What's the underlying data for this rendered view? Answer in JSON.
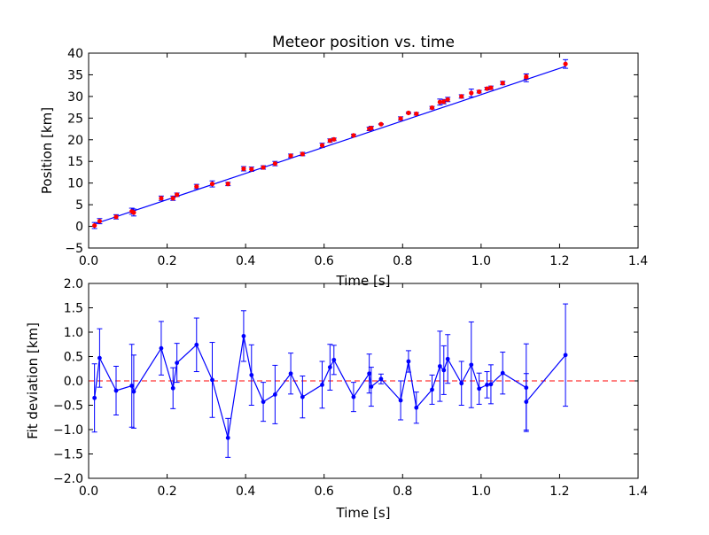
{
  "chart_data": [
    {
      "type": "scatter",
      "title": "Meteor position vs. time",
      "xlabel": "Time [s]",
      "ylabel": "Position [km]",
      "xlim": [
        0,
        1.4
      ],
      "ylim": [
        -5,
        40
      ],
      "xticks": [
        "0.0",
        "0.2",
        "0.4",
        "0.6",
        "0.8",
        "1.0",
        "1.2",
        "1.4"
      ],
      "yticks": [
        "−5",
        "0",
        "5",
        "10",
        "15",
        "20",
        "25",
        "30",
        "35",
        "40"
      ],
      "grid": false,
      "colors": {
        "points": "#ff0000",
        "errorbars": "#0000ff",
        "fit": "#0000ff"
      },
      "series": [
        {
          "kind": "measured",
          "x": [
            0.015,
            0.028,
            0.07,
            0.11,
            0.115,
            0.185,
            0.215,
            0.225,
            0.275,
            0.315,
            0.355,
            0.395,
            0.415,
            0.445,
            0.475,
            0.515,
            0.545,
            0.595,
            0.615,
            0.625,
            0.675,
            0.715,
            0.72,
            0.745,
            0.795,
            0.815,
            0.835,
            0.875,
            0.895,
            0.905,
            0.915,
            0.95,
            0.975,
            0.995,
            1.015,
            1.025,
            1.055,
            1.115,
            1.115,
            1.215
          ],
          "y": [
            0.2,
            1.2,
            2.2,
            3.5,
            3.2,
            6.5,
            6.5,
            7.3,
            9.2,
            9.8,
            9.8,
            13.3,
            13.2,
            13.6,
            14.5,
            16.3,
            16.7,
            18.7,
            19.8,
            20.1,
            21.0,
            22.5,
            22.7,
            23.6,
            24.9,
            26.2,
            26.0,
            27.4,
            28.7,
            28.8,
            29.3,
            30.0,
            30.8,
            31.1,
            31.8,
            32.0,
            33.1,
            34.3,
            34.6,
            37.5
          ],
          "yerr": [
            0.7,
            0.6,
            0.5,
            0.7,
            0.8,
            0.5,
            0.5,
            0.4,
            0.5,
            0.7,
            0.4,
            0.5,
            0.5,
            0.4,
            0.5,
            0.4,
            0.4,
            0.5,
            0.4,
            0.3,
            0.3,
            0.4,
            0.4,
            0.1,
            0.4,
            0.2,
            0.3,
            0.3,
            0.7,
            0.5,
            0.5,
            0.4,
            0.9,
            0.3,
            0.3,
            0.4,
            0.4,
            0.9,
            0.6,
            1.0
          ]
        },
        {
          "kind": "fit",
          "x": [
            0.015,
            1.215
          ],
          "y": [
            0.55,
            36.95
          ]
        }
      ]
    },
    {
      "type": "line",
      "title": "",
      "xlabel": "Time [s]",
      "ylabel": "Fit deviation [km]",
      "xlim": [
        0,
        1.4
      ],
      "ylim": [
        -2.0,
        2.0
      ],
      "xticks": [
        "0.0",
        "0.2",
        "0.4",
        "0.6",
        "0.8",
        "1.0",
        "1.2",
        "1.4"
      ],
      "yticks": [
        "−2.0",
        "−1.5",
        "−1.0",
        "−0.5",
        "0.0",
        "0.5",
        "1.0",
        "1.5",
        "2.0"
      ],
      "grid": false,
      "colors": {
        "line": "#0000ff",
        "zero": "#ff0000"
      },
      "reference_line": {
        "y": 0,
        "style": "dashed"
      },
      "series": [
        {
          "kind": "residuals",
          "x": [
            0.015,
            0.028,
            0.07,
            0.11,
            0.115,
            0.185,
            0.215,
            0.225,
            0.275,
            0.315,
            0.355,
            0.395,
            0.415,
            0.445,
            0.475,
            0.515,
            0.545,
            0.595,
            0.615,
            0.625,
            0.675,
            0.715,
            0.72,
            0.745,
            0.795,
            0.815,
            0.835,
            0.875,
            0.895,
            0.905,
            0.915,
            0.95,
            0.975,
            0.995,
            1.015,
            1.025,
            1.055,
            1.115,
            1.115,
            1.215
          ],
          "y": [
            -0.35,
            0.47,
            -0.2,
            -0.1,
            -0.22,
            0.67,
            -0.15,
            0.37,
            0.74,
            0.02,
            -1.17,
            0.92,
            0.12,
            -0.43,
            -0.28,
            0.15,
            -0.33,
            -0.08,
            0.28,
            0.43,
            -0.33,
            0.15,
            -0.12,
            0.04,
            -0.4,
            0.4,
            -0.55,
            -0.18,
            0.3,
            0.22,
            0.45,
            -0.05,
            0.33,
            -0.16,
            -0.08,
            -0.07,
            0.16,
            -0.14,
            -0.43,
            0.53
          ],
          "yerr": [
            0.7,
            0.6,
            0.5,
            0.85,
            0.75,
            0.55,
            0.42,
            0.4,
            0.55,
            0.77,
            0.4,
            0.52,
            0.62,
            0.4,
            0.6,
            0.42,
            0.43,
            0.48,
            0.47,
            0.3,
            0.3,
            0.4,
            0.4,
            0.1,
            0.4,
            0.22,
            0.32,
            0.3,
            0.72,
            0.5,
            0.5,
            0.45,
            0.88,
            0.32,
            0.27,
            0.4,
            0.43,
            0.9,
            0.58,
            1.05
          ]
        }
      ]
    }
  ]
}
